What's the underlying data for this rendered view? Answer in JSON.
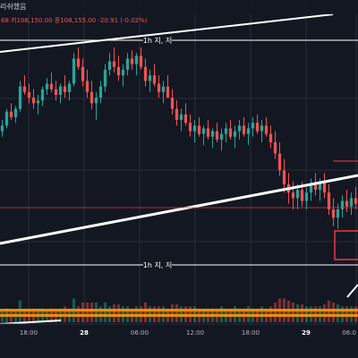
{
  "header": {
    "title_fragment": "리쉬했음",
    "ohlc_left": "68",
    "ohlc_text": "저108,150.00 종108,155.00 -20.91 (-0.02%)"
  },
  "colors": {
    "background": "#131722",
    "up": "#26a69a",
    "down": "#ef5350",
    "grid": "#2a2e39",
    "drawing_white": "#ffffff",
    "box_red": "#f23645",
    "band_orange": "#ff9800"
  },
  "annotations": [
    {
      "label": "1h 지, 저"
    },
    {
      "label": "1h 지, 저"
    }
  ],
  "chart_data": {
    "type": "candlestick",
    "x_tick_labels": [
      "18:00",
      "28",
      "06:00",
      "12:00",
      "18:00",
      "29",
      "06:0"
    ],
    "bold_ticks": [
      "28",
      "29"
    ],
    "ylim": [
      0,
      100
    ],
    "candles": [
      [
        62,
        66,
        60,
        64
      ],
      [
        64,
        70,
        63,
        69
      ],
      [
        69,
        72,
        66,
        67
      ],
      [
        67,
        71,
        65,
        70
      ],
      [
        70,
        80,
        69,
        78
      ],
      [
        78,
        82,
        75,
        76
      ],
      [
        76,
        79,
        72,
        74
      ],
      [
        74,
        77,
        70,
        72
      ],
      [
        72,
        75,
        68,
        73
      ],
      [
        73,
        78,
        71,
        77
      ],
      [
        77,
        81,
        75,
        79
      ],
      [
        79,
        83,
        76,
        77
      ],
      [
        77,
        80,
        73,
        75
      ],
      [
        75,
        79,
        72,
        78
      ],
      [
        78,
        82,
        74,
        76
      ],
      [
        76,
        80,
        73,
        79
      ],
      [
        79,
        90,
        78,
        88
      ],
      [
        88,
        92,
        84,
        85
      ],
      [
        85,
        88,
        78,
        80
      ],
      [
        80,
        84,
        74,
        76
      ],
      [
        76,
        80,
        70,
        72
      ],
      [
        72,
        76,
        66,
        74
      ],
      [
        74,
        80,
        72,
        78
      ],
      [
        78,
        86,
        76,
        84
      ],
      [
        84,
        90,
        82,
        87
      ],
      [
        87,
        92,
        83,
        85
      ],
      [
        85,
        89,
        80,
        82
      ],
      [
        82,
        86,
        78,
        84
      ],
      [
        84,
        90,
        82,
        88
      ],
      [
        88,
        91,
        84,
        86
      ],
      [
        86,
        90,
        82,
        89
      ],
      [
        89,
        92,
        84,
        85
      ],
      [
        85,
        88,
        78,
        80
      ],
      [
        80,
        84,
        76,
        82
      ],
      [
        82,
        86,
        78,
        79
      ],
      [
        79,
        82,
        74,
        76
      ],
      [
        76,
        80,
        72,
        78
      ],
      [
        78,
        82,
        75,
        74
      ],
      [
        74,
        77,
        68,
        70
      ],
      [
        70,
        73,
        64,
        66
      ],
      [
        66,
        70,
        62,
        68
      ],
      [
        68,
        72,
        64,
        65
      ],
      [
        65,
        68,
        60,
        62
      ],
      [
        62,
        66,
        58,
        64
      ],
      [
        64,
        67,
        60,
        61
      ],
      [
        61,
        64,
        57,
        63
      ],
      [
        63,
        66,
        59,
        60
      ],
      [
        60,
        63,
        56,
        62
      ],
      [
        62,
        65,
        58,
        59
      ],
      [
        59,
        63,
        55,
        61
      ],
      [
        61,
        65,
        58,
        63
      ],
      [
        63,
        66,
        59,
        60
      ],
      [
        60,
        64,
        56,
        62
      ],
      [
        62,
        66,
        59,
        64
      ],
      [
        64,
        67,
        60,
        61
      ],
      [
        61,
        65,
        57,
        63
      ],
      [
        63,
        67,
        60,
        65
      ],
      [
        65,
        68,
        61,
        62
      ],
      [
        62,
        66,
        58,
        64
      ],
      [
        64,
        67,
        60,
        61
      ],
      [
        61,
        64,
        56,
        58
      ],
      [
        58,
        62,
        52,
        54
      ],
      [
        54,
        58,
        46,
        48
      ],
      [
        48,
        52,
        40,
        43
      ],
      [
        43,
        47,
        36,
        40
      ],
      [
        40,
        44,
        34,
        38
      ],
      [
        38,
        43,
        34,
        41
      ],
      [
        41,
        44,
        35,
        37
      ],
      [
        37,
        42,
        34,
        40
      ],
      [
        40,
        45,
        37,
        43
      ],
      [
        43,
        47,
        39,
        41
      ],
      [
        41,
        45,
        37,
        44
      ],
      [
        44,
        47,
        38,
        40
      ],
      [
        40,
        43,
        32,
        34
      ],
      [
        34,
        38,
        28,
        31
      ],
      [
        31,
        36,
        27,
        34
      ],
      [
        34,
        39,
        31,
        37
      ],
      [
        37,
        41,
        33,
        35
      ],
      [
        35,
        40,
        32,
        38
      ],
      [
        38,
        42,
        34,
        36
      ]
    ]
  }
}
